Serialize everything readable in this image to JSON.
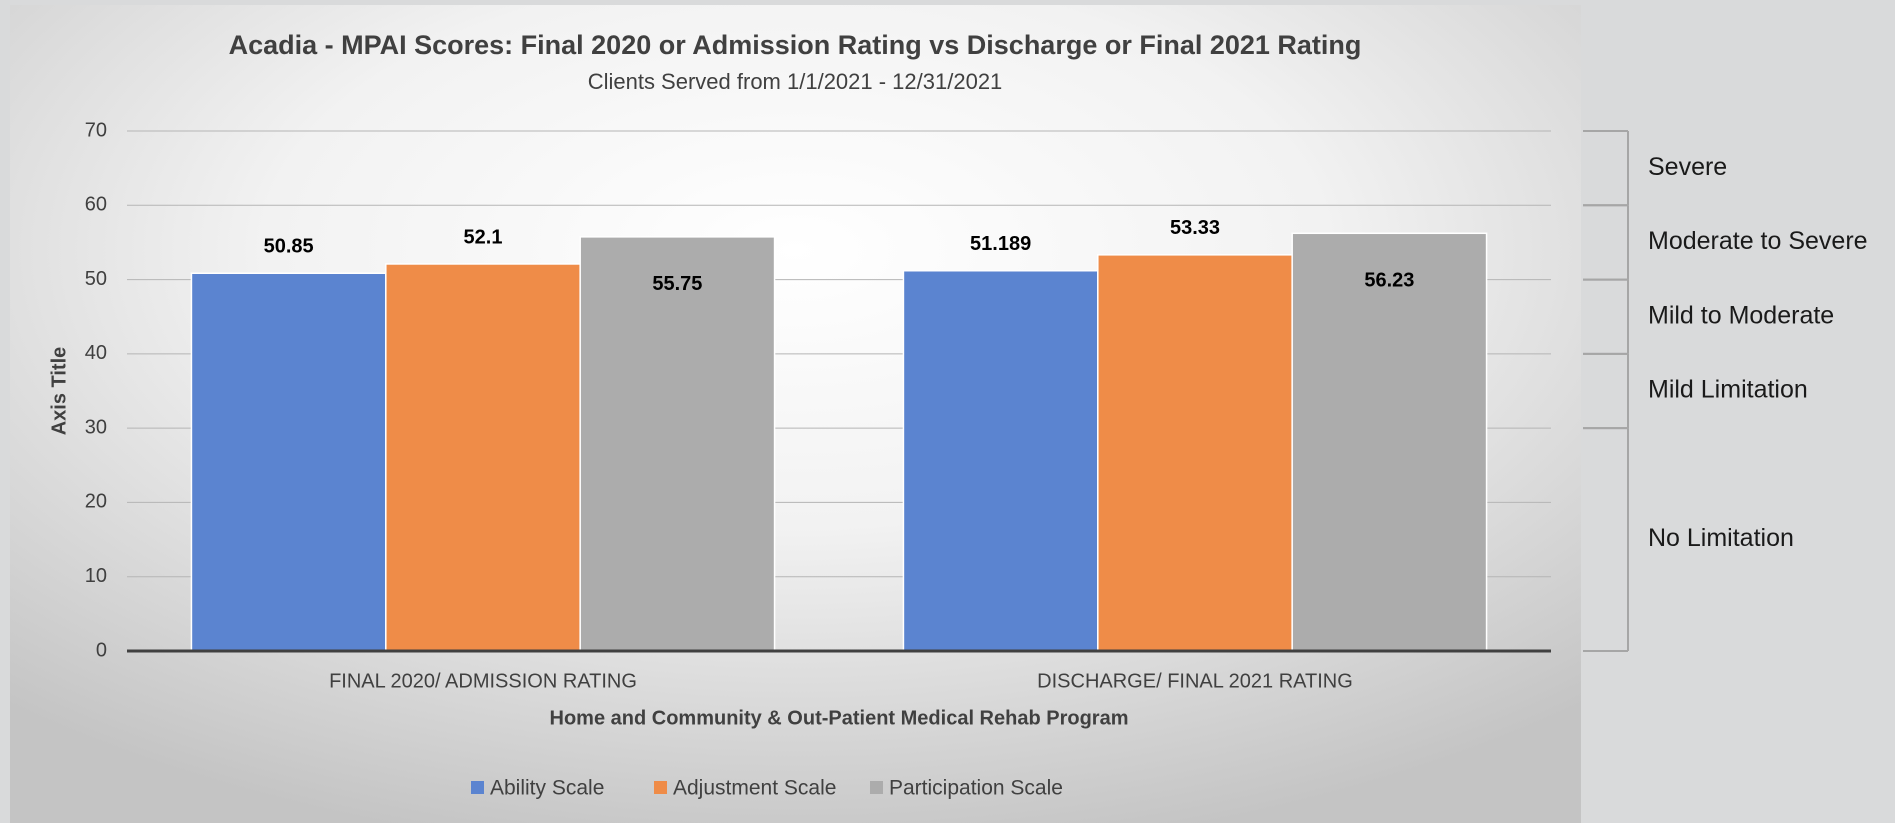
{
  "chart_data": {
    "type": "bar",
    "title": "Acadia - MPAI Scores: Final 2020 or Admission Rating vs Discharge or Final 2021 Rating",
    "subtitle": "Clients Served from 1/1/2021 - 12/31/2021",
    "x_label": "Home and Community & Out-Patient Medical Rehab Program",
    "y_label": "Axis Title",
    "categories": [
      "FINAL 2020/ ADMISSION RATING",
      "DISCHARGE/ FINAL 2021 RATING"
    ],
    "series": [
      {
        "name": "Ability Scale",
        "color": "#5b84d0",
        "values": [
          50.85,
          51.189
        ]
      },
      {
        "name": "Adjustment Scale",
        "color": "#ef8c48",
        "values": [
          52.1,
          53.33
        ]
      },
      {
        "name": "Participation Scale",
        "color": "#acacac",
        "values": [
          55.75,
          56.23
        ]
      }
    ],
    "ylim": [
      0,
      70
    ],
    "yticks": [
      0,
      10,
      20,
      30,
      40,
      50,
      60,
      70
    ],
    "grid": true,
    "legend": "bottom",
    "bands": [
      {
        "label": "Severe",
        "from": 60,
        "to": 70
      },
      {
        "label": "Moderate to Severe",
        "from": 50,
        "to": 60
      },
      {
        "label": "Mild to Moderate",
        "from": 40,
        "to": 50
      },
      {
        "label": "Mild Limitation",
        "from": 30,
        "to": 40
      },
      {
        "label": "No Limitation",
        "from": 0,
        "to": 30
      }
    ]
  }
}
